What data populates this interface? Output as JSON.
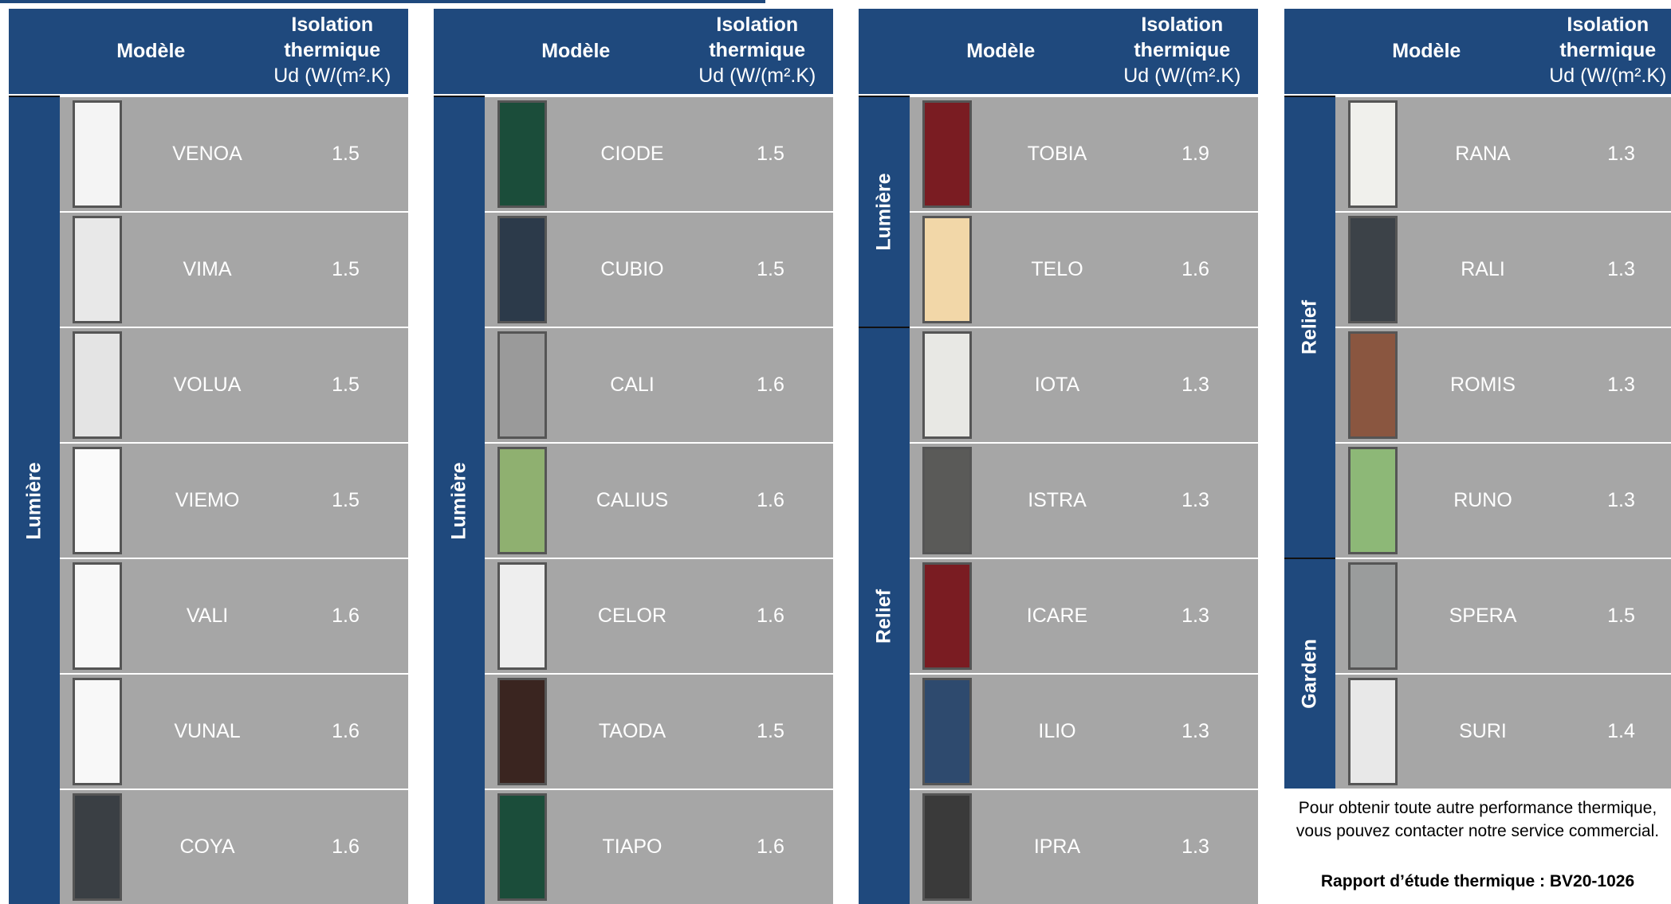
{
  "panels": [
    {
      "header": {
        "model": "Modèle",
        "insulation_1": "Isolation",
        "insulation_2": "thermique",
        "unit": "Ud (W/(m².K)"
      },
      "groups": [
        {
          "label": "Lumière",
          "rows": [
            {
              "model": "VENOA",
              "ud": "1.5"
            },
            {
              "model": "VIMA",
              "ud": "1.5"
            },
            {
              "model": "VOLUA",
              "ud": "1.5"
            },
            {
              "model": "VIEMO",
              "ud": "1.5"
            },
            {
              "model": "VALI",
              "ud": "1.6"
            },
            {
              "model": "VUNAL",
              "ud": "1.6"
            },
            {
              "model": "COYA",
              "ud": "1.6"
            }
          ]
        }
      ]
    },
    {
      "header": {
        "model": "Modèle",
        "insulation_1": "Isolation",
        "insulation_2": "thermique",
        "unit": "Ud (W/(m².K)"
      },
      "groups": [
        {
          "label": "Lumière",
          "rows": [
            {
              "model": "CIODE",
              "ud": "1.5"
            },
            {
              "model": "CUBIO",
              "ud": "1.5"
            },
            {
              "model": "CALI",
              "ud": "1.6"
            },
            {
              "model": "CALIUS",
              "ud": "1.6"
            },
            {
              "model": "CELOR",
              "ud": "1.6"
            },
            {
              "model": "TAODA",
              "ud": "1.5"
            },
            {
              "model": "TIAPO",
              "ud": "1.6"
            }
          ]
        }
      ]
    },
    {
      "header": {
        "model": "Modèle",
        "insulation_1": "Isolation",
        "insulation_2": "thermique",
        "unit": "Ud (W/(m².K)"
      },
      "groups": [
        {
          "label": "Lumière",
          "rows": [
            {
              "model": "TOBIA",
              "ud": "1.9"
            },
            {
              "model": "TELO",
              "ud": "1.6"
            }
          ]
        },
        {
          "label": "Relief",
          "rows": [
            {
              "model": "IOTA",
              "ud": "1.3"
            },
            {
              "model": "ISTRA",
              "ud": "1.3"
            },
            {
              "model": "ICARE",
              "ud": "1.3"
            },
            {
              "model": "ILIO",
              "ud": "1.3"
            },
            {
              "model": "IPRA",
              "ud": "1.3"
            }
          ]
        }
      ]
    },
    {
      "header": {
        "model": "Modèle",
        "insulation_1": "Isolation",
        "insulation_2": "thermique",
        "unit": "Ud (W/(m².K)"
      },
      "groups": [
        {
          "label": "Relief",
          "rows": [
            {
              "model": "RANA",
              "ud": "1.3"
            },
            {
              "model": "RALI",
              "ud": "1.3"
            },
            {
              "model": "ROMIS",
              "ud": "1.3"
            },
            {
              "model": "RUNO",
              "ud": "1.3"
            }
          ]
        },
        {
          "label": "Garden",
          "rows": [
            {
              "model": "SPERA",
              "ud": "1.5"
            },
            {
              "model": "SURI",
              "ud": "1.4"
            }
          ]
        }
      ]
    }
  ],
  "note": "Pour obtenir toute autre performance thermique, vous pouvez contacter notre service commercial.",
  "report": "Rapport d’étude thermique : BV20-1026"
}
